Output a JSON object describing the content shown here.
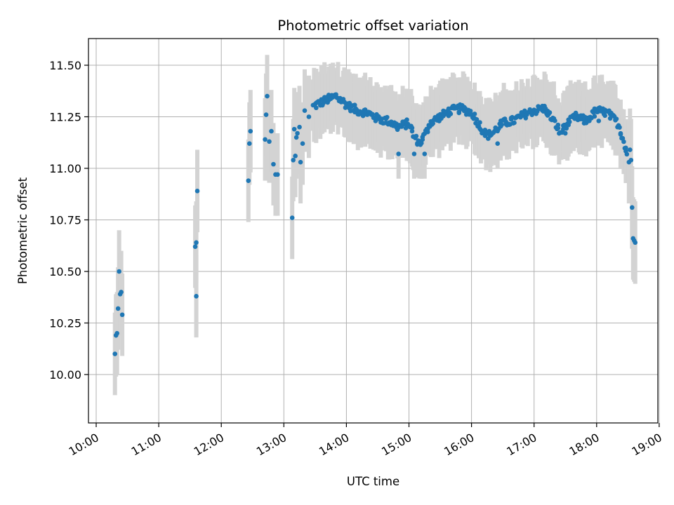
{
  "chart_data": {
    "type": "scatter",
    "title": "Photometric offset variation",
    "xlabel": "UTC time",
    "ylabel": "Photometric offset",
    "xlim": [
      "10:00",
      "19:00"
    ],
    "ylim": [
      9.8,
      11.63
    ],
    "xtick_labels": [
      "10:00",
      "11:00",
      "12:00",
      "13:00",
      "14:00",
      "15:00",
      "16:00",
      "17:00",
      "18:00",
      "19:00"
    ],
    "yticks": [
      10.0,
      10.25,
      10.5,
      10.75,
      11.0,
      11.25,
      11.5
    ],
    "ytick_labels": [
      "10.00",
      "10.25",
      "10.50",
      "10.75",
      "11.00",
      "11.25",
      "11.50"
    ],
    "grid": true,
    "legend": "none",
    "colors": {
      "points": "#1f77b4",
      "errorbars": "#d3d3d3",
      "grid": "#b0b0b0",
      "axes": "#000000"
    },
    "clusters": [
      {
        "x_start": "10:17",
        "x_end": "10:25",
        "points": [
          [
            "10:18",
            10.1
          ],
          [
            "10:19",
            10.19
          ],
          [
            "10:20",
            10.2
          ],
          [
            "10:21",
            10.32
          ],
          [
            "10:22",
            10.5
          ],
          [
            "10:23",
            10.39
          ],
          [
            "10:24",
            10.4
          ],
          [
            "10:25",
            10.29
          ]
        ]
      },
      {
        "x_start": "11:35",
        "x_end": "11:38",
        "points": [
          [
            "11:35",
            10.62
          ],
          [
            "11:36",
            10.38
          ],
          [
            "11:36",
            10.64
          ],
          [
            "11:37",
            10.89
          ]
        ]
      },
      {
        "x_start": "12:26",
        "x_end": "12:30",
        "points": [
          [
            "12:26",
            10.94
          ],
          [
            "12:27",
            11.12
          ],
          [
            "12:28",
            11.18
          ]
        ]
      },
      {
        "x_start": "12:42",
        "x_end": "12:58",
        "points": [
          [
            "12:42",
            11.14
          ],
          [
            "12:43",
            11.26
          ],
          [
            "12:44",
            11.35
          ],
          [
            "12:46",
            11.13
          ],
          [
            "12:48",
            11.18
          ],
          [
            "12:50",
            11.02
          ],
          [
            "12:52",
            10.97
          ],
          [
            "12:54",
            10.97
          ]
        ]
      },
      {
        "x_start": "13:08",
        "x_end": "13:28",
        "points": [
          [
            "13:08",
            10.76
          ],
          [
            "13:09",
            11.04
          ],
          [
            "13:10",
            11.19
          ],
          [
            "13:11",
            11.06
          ],
          [
            "13:12",
            11.15
          ],
          [
            "13:13",
            11.17
          ],
          [
            "13:15",
            11.2
          ],
          [
            "13:16",
            11.03
          ],
          [
            "13:18",
            11.12
          ],
          [
            "13:20",
            11.28
          ],
          [
            "13:24",
            11.25
          ]
        ]
      }
    ],
    "main_trend": [
      [
        "13:28",
        11.3
      ],
      [
        "13:40",
        11.33
      ],
      [
        "13:50",
        11.35
      ],
      [
        "14:00",
        11.31
      ],
      [
        "14:10",
        11.28
      ],
      [
        "14:20",
        11.27
      ],
      [
        "14:30",
        11.24
      ],
      [
        "14:40",
        11.23
      ],
      [
        "14:50",
        11.2
      ],
      [
        "15:00",
        11.22
      ],
      [
        "15:05",
        11.15
      ],
      [
        "15:10",
        11.12
      ],
      [
        "15:15",
        11.16
      ],
      [
        "15:20",
        11.22
      ],
      [
        "15:30",
        11.25
      ],
      [
        "15:40",
        11.28
      ],
      [
        "15:50",
        11.29
      ],
      [
        "16:00",
        11.27
      ],
      [
        "16:05",
        11.23
      ],
      [
        "16:10",
        11.19
      ],
      [
        "16:15",
        11.16
      ],
      [
        "16:20",
        11.17
      ],
      [
        "16:30",
        11.22
      ],
      [
        "16:40",
        11.23
      ],
      [
        "16:50",
        11.26
      ],
      [
        "17:00",
        11.28
      ],
      [
        "17:10",
        11.29
      ],
      [
        "17:20",
        11.22
      ],
      [
        "17:25",
        11.17
      ],
      [
        "17:30",
        11.21
      ],
      [
        "17:40",
        11.25
      ],
      [
        "17:50",
        11.23
      ],
      [
        "18:00",
        11.28
      ],
      [
        "18:10",
        11.27
      ],
      [
        "18:20",
        11.22
      ],
      [
        "18:25",
        11.15
      ],
      [
        "18:30",
        11.05
      ]
    ],
    "tail_points": [
      [
        "18:34",
        10.81
      ],
      [
        "18:35",
        10.66
      ],
      [
        "18:36",
        10.65
      ],
      [
        "18:37",
        10.64
      ],
      [
        "18:33",
        11.04
      ],
      [
        "18:32",
        11.09
      ],
      [
        "18:31",
        11.03
      ]
    ],
    "isolated_points": [
      [
        "15:05",
        11.07
      ],
      [
        "14:50",
        11.07
      ],
      [
        "15:15",
        11.07
      ],
      [
        "16:25",
        11.12
      ],
      [
        "18:02",
        11.23
      ],
      [
        "17:30",
        11.17
      ]
    ]
  }
}
